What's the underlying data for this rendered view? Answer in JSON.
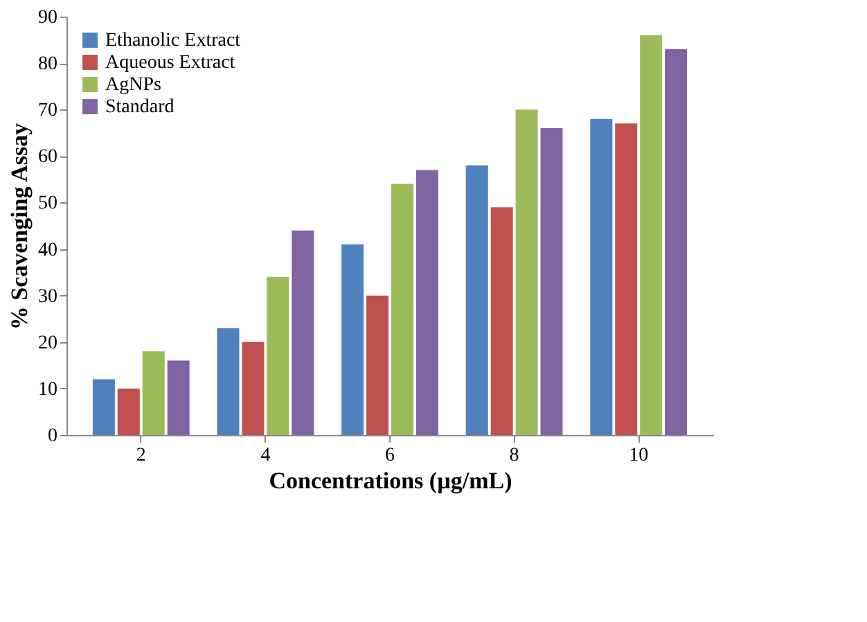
{
  "chart_data": {
    "type": "bar",
    "xlabel": "Concentrations (µg/mL)",
    "ylabel": "% Scavenging Assay",
    "categories": [
      "2",
      "4",
      "6",
      "8",
      "10"
    ],
    "series": [
      {
        "name": "Ethanolic Extract",
        "color": "#4f81bd",
        "values": [
          12,
          23,
          41,
          58,
          68
        ]
      },
      {
        "name": "Aqueous Extract",
        "color": "#c0504d",
        "values": [
          10,
          20,
          30,
          49,
          67
        ]
      },
      {
        "name": "AgNPs",
        "color": "#9bbb59",
        "values": [
          18,
          34,
          54,
          70,
          86
        ]
      },
      {
        "name": "Standard",
        "color": "#8064a2",
        "values": [
          16,
          44,
          57,
          66,
          83
        ]
      }
    ],
    "ylim": [
      0,
      90
    ],
    "yticks": [
      0,
      10,
      20,
      30,
      40,
      50,
      60,
      70,
      80,
      90
    ],
    "grid": false,
    "legend": "top left"
  }
}
